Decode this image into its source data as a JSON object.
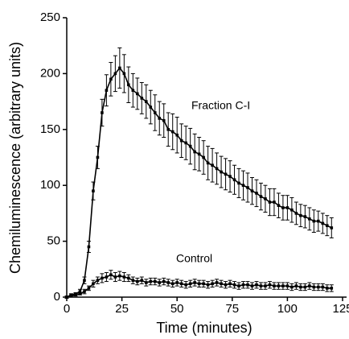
{
  "chart_data": {
    "type": "line",
    "xlabel": "Time (minutes)",
    "ylabel": "Chemiluminescence (arbitrary units)",
    "xlim": [
      0,
      125
    ],
    "ylim": [
      0,
      250
    ],
    "xticks": [
      0,
      25,
      50,
      75,
      100,
      125
    ],
    "yticks": [
      0,
      50,
      100,
      150,
      200,
      250
    ],
    "x": [
      0,
      2,
      4,
      6,
      8,
      10,
      12,
      14,
      16,
      18,
      20,
      22,
      24,
      26,
      28,
      30,
      32,
      34,
      36,
      38,
      40,
      42,
      44,
      46,
      48,
      50,
      52,
      54,
      56,
      58,
      60,
      62,
      64,
      66,
      68,
      70,
      72,
      74,
      76,
      78,
      80,
      82,
      84,
      86,
      88,
      90,
      92,
      94,
      96,
      98,
      100,
      102,
      104,
      106,
      108,
      110,
      112,
      114,
      116,
      118,
      120
    ],
    "series": [
      {
        "name": "Fraction C-I",
        "color": "#000000",
        "values": [
          0,
          2,
          3,
          5,
          15,
          45,
          95,
          125,
          165,
          185,
          195,
          200,
          205,
          200,
          190,
          185,
          182,
          178,
          175,
          170,
          165,
          160,
          158,
          150,
          148,
          145,
          140,
          138,
          135,
          130,
          128,
          125,
          120,
          118,
          115,
          112,
          110,
          108,
          105,
          102,
          100,
          98,
          95,
          93,
          90,
          88,
          85,
          85,
          82,
          80,
          80,
          78,
          75,
          73,
          72,
          70,
          68,
          68,
          66,
          64,
          62
        ],
        "errors": [
          1,
          1,
          1,
          2,
          3,
          5,
          8,
          10,
          12,
          14,
          15,
          16,
          18,
          17,
          16,
          15,
          14,
          14,
          15,
          15,
          16,
          15,
          15,
          15,
          16,
          16,
          15,
          15,
          16,
          16,
          15,
          15,
          15,
          15,
          14,
          14,
          14,
          14,
          13,
          13,
          13,
          13,
          12,
          12,
          12,
          12,
          12,
          12,
          11,
          11,
          11,
          11,
          10,
          10,
          10,
          10,
          10,
          9,
          9,
          9,
          9
        ]
      },
      {
        "name": "Control",
        "color": "#000000",
        "values": [
          0,
          1,
          2,
          3,
          5,
          8,
          12,
          15,
          17,
          18,
          20,
          18,
          19,
          18,
          17,
          15,
          14,
          15,
          13,
          14,
          14,
          13,
          14,
          13,
          12,
          13,
          12,
          11,
          12,
          13,
          12,
          12,
          11,
          12,
          13,
          12,
          11,
          12,
          11,
          10,
          11,
          11,
          10,
          11,
          10,
          10,
          11,
          10,
          10,
          10,
          10,
          9,
          10,
          9,
          9,
          10,
          9,
          9,
          9,
          8,
          8
        ],
        "errors": [
          1,
          1,
          1,
          1,
          2,
          2,
          3,
          3,
          4,
          4,
          4,
          4,
          4,
          4,
          3,
          3,
          3,
          3,
          3,
          3,
          3,
          3,
          3,
          3,
          3,
          3,
          3,
          3,
          3,
          3,
          3,
          3,
          3,
          3,
          3,
          3,
          3,
          3,
          3,
          3,
          3,
          3,
          3,
          3,
          3,
          3,
          3,
          3,
          3,
          3,
          3,
          3,
          3,
          3,
          3,
          3,
          3,
          3,
          3,
          3,
          3
        ]
      }
    ]
  }
}
